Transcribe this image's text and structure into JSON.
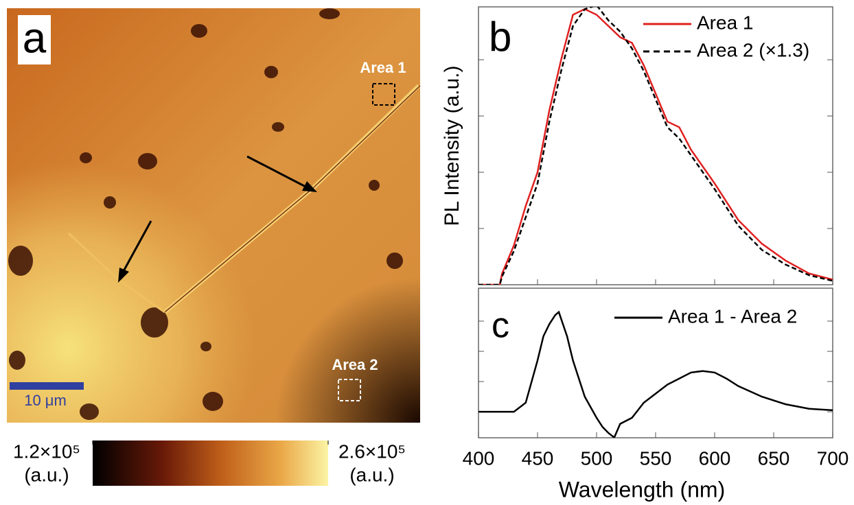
{
  "chart_data": [
    {
      "type": "heatmap",
      "panel_label": "a",
      "annotations": [
        "Area 1",
        "Area 2"
      ],
      "scale_bar": "10 μm",
      "colorbar": {
        "lim": [
          120000,
          260000
        ],
        "ticks": [
          {
            "value": 120000,
            "label": "1.2×10⁵"
          },
          {
            "value": 260000,
            "label": "2.6×10⁵"
          }
        ],
        "label": "(a.u.)"
      }
    },
    {
      "type": "line",
      "panel_label": "b",
      "ylabel": "PL Intensity (a.u.)",
      "x": [
        400,
        418,
        420,
        430,
        440,
        450,
        460,
        470,
        480,
        490,
        500,
        510,
        520,
        530,
        540,
        550,
        560,
        570,
        580,
        590,
        600,
        620,
        640,
        660,
        680,
        700
      ],
      "series": [
        {
          "name": "Area 1",
          "color": "#e02020",
          "dash": false,
          "values": [
            0,
            0,
            0.2,
            0.7,
            1.4,
            2.0,
            3.1,
            4.0,
            4.8,
            4.9,
            4.8,
            4.6,
            4.4,
            4.3,
            3.9,
            3.4,
            2.9,
            2.8,
            2.4,
            2.1,
            1.8,
            1.15,
            0.73,
            0.43,
            0.2,
            0.09
          ]
        },
        {
          "name": "Area 2 (×1.3)",
          "color": "#000000",
          "dash": true,
          "values": [
            0,
            0,
            0.15,
            0.6,
            1.2,
            1.8,
            2.9,
            3.8,
            4.6,
            4.9,
            4.97,
            4.7,
            4.5,
            4.2,
            3.8,
            3.3,
            2.8,
            2.6,
            2.3,
            2.0,
            1.7,
            1.05,
            0.62,
            0.36,
            0.17,
            0.07
          ]
        }
      ],
      "xlim": [
        400,
        700
      ],
      "xticks": [
        400,
        450,
        500,
        550,
        600,
        650,
        700
      ],
      "xtick_labels": false,
      "ylim": [
        0,
        4.94
      ],
      "yticks": [
        1,
        2,
        3,
        4
      ],
      "ytick_labels": false
    },
    {
      "type": "line",
      "panel_label": "c",
      "xlabel": "Wavelength (nm)",
      "x": [
        400,
        430,
        440,
        450,
        455,
        460,
        465,
        468,
        475,
        480,
        490,
        500,
        505,
        510,
        515,
        520,
        530,
        540,
        550,
        560,
        570,
        580,
        590,
        600,
        610,
        620,
        640,
        660,
        680,
        700
      ],
      "series": [
        {
          "name": "Area 1 - Area 2",
          "color": "#000000",
          "dash": false,
          "values": [
            0,
            0,
            0.3,
            1.7,
            2.5,
            2.9,
            3.2,
            3.3,
            2.5,
            1.7,
            0.5,
            -0.2,
            -0.5,
            -0.7,
            -0.85,
            -0.4,
            -0.2,
            0.3,
            0.6,
            0.9,
            1.1,
            1.3,
            1.35,
            1.3,
            1.1,
            0.85,
            0.5,
            0.25,
            0.1,
            0.05
          ]
        }
      ],
      "xlim": [
        400,
        700
      ],
      "xticks": [
        400,
        450,
        500,
        550,
        600,
        650,
        700
      ],
      "xtick_labels": true,
      "ylim": [
        -0.86,
        4.09
      ],
      "yticks": [
        0,
        1,
        2,
        3
      ],
      "ytick_labels": false
    }
  ]
}
